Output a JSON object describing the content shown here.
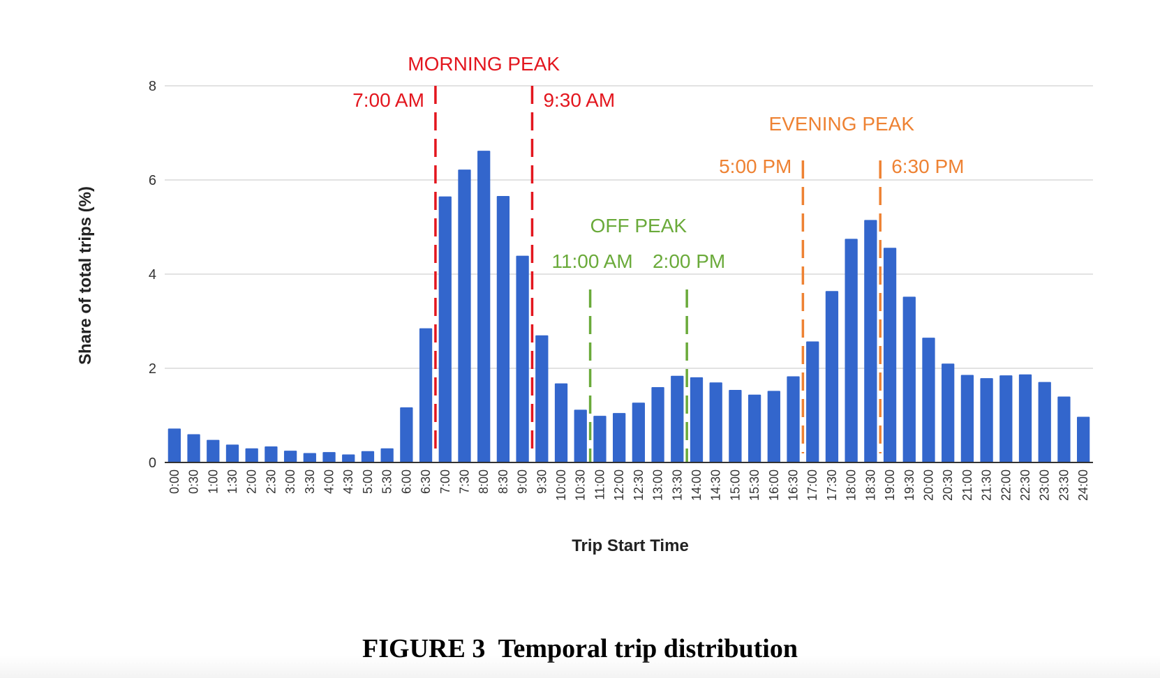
{
  "caption": "FIGURE 3  Temporal trip distribution",
  "colors": {
    "bar": "#3366cc",
    "grid": "#d9d9d9",
    "axis": "#333333",
    "morning": "#e3161e",
    "offpeak": "#6aaa3a",
    "evening": "#ee8233"
  },
  "chart_data": {
    "type": "bar",
    "title": "",
    "xlabel": "Trip Start Time",
    "ylabel": "Share of total trips (%)",
    "ylim": [
      0,
      8
    ],
    "yticks": [
      0,
      2,
      4,
      6,
      8
    ],
    "grid": true,
    "categories": [
      "0:00",
      "0:30",
      "1:00",
      "1:30",
      "2:00",
      "2:30",
      "3:00",
      "3:30",
      "4:00",
      "4:30",
      "5:00",
      "5:30",
      "6:00",
      "6:30",
      "7:00",
      "7:30",
      "8:00",
      "8:30",
      "9:00",
      "9:30",
      "10:00",
      "10:30",
      "11:00",
      "12:00",
      "12:30",
      "13:00",
      "13:30",
      "14:00",
      "14:30",
      "15:00",
      "15:30",
      "16:00",
      "16:30",
      "17:00",
      "17:30",
      "18:00",
      "18:30",
      "19:00",
      "19:30",
      "20:00",
      "20:30",
      "21:00",
      "21:30",
      "22:00",
      "22:30",
      "23:00",
      "23:30",
      "24:00"
    ],
    "values": [
      0.72,
      0.6,
      0.48,
      0.38,
      0.3,
      0.34,
      0.25,
      0.2,
      0.22,
      0.17,
      0.24,
      0.3,
      1.17,
      2.85,
      5.65,
      6.22,
      6.62,
      5.66,
      4.39,
      2.7,
      1.68,
      1.12,
      0.99,
      1.05,
      1.27,
      1.6,
      1.84,
      1.81,
      1.7,
      1.54,
      1.44,
      1.52,
      1.83,
      2.57,
      3.64,
      4.75,
      5.15,
      4.56,
      3.52,
      2.65,
      2.1,
      1.86,
      1.79,
      1.85,
      1.87,
      1.71,
      1.4,
      0.97
    ],
    "annotations": [
      {
        "label": "MORNING PEAK",
        "group": "morning"
      },
      {
        "label": "7:00 AM",
        "group": "morning",
        "after_category": "6:30"
      },
      {
        "label": "9:30 AM",
        "group": "morning",
        "after_category": "9:00"
      },
      {
        "label": "OFF PEAK",
        "group": "offpeak"
      },
      {
        "label": "11:00 AM",
        "group": "offpeak",
        "after_category": "10:30"
      },
      {
        "label": "2:00 PM",
        "group": "offpeak",
        "after_category": "13:30"
      },
      {
        "label": "EVENING PEAK",
        "group": "evening"
      },
      {
        "label": "5:00 PM",
        "group": "evening",
        "after_category": "16:30"
      },
      {
        "label": "6:30 PM",
        "group": "evening",
        "after_category": "18:30"
      }
    ]
  }
}
